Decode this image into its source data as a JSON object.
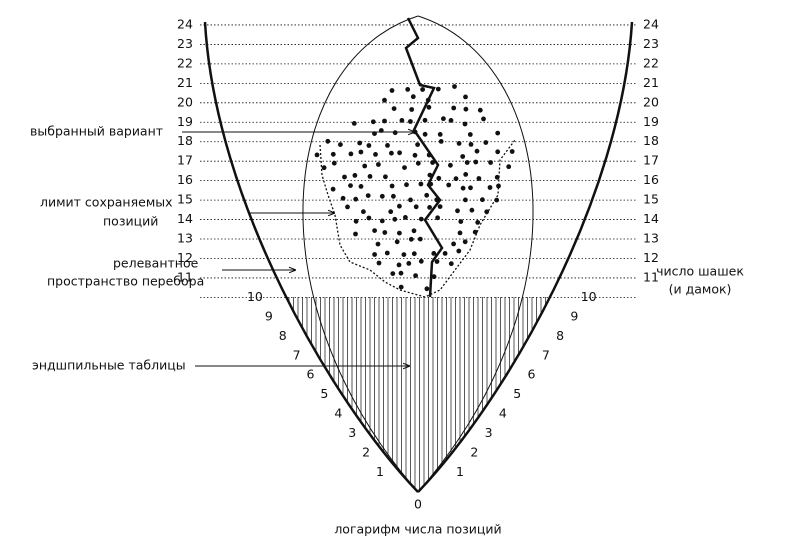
{
  "scale": {
    "levels": [
      0,
      1,
      2,
      3,
      4,
      5,
      6,
      7,
      8,
      9,
      10,
      11,
      12,
      13,
      14,
      15,
      16,
      17,
      18,
      19,
      20,
      21,
      22,
      23,
      24
    ]
  },
  "labels": {
    "chosen_variant": "выбранный вариант",
    "stored_limit": [
      "лимит сохраняемых",
      "позиций"
    ],
    "relevant_space": [
      "релевантное",
      "пространство перебора"
    ],
    "endgame_tables": "эндшпильные таблицы",
    "pieces_count": [
      "число шашек",
      "(и дамок)"
    ],
    "log_positions": "логарифм числа позиций"
  }
}
